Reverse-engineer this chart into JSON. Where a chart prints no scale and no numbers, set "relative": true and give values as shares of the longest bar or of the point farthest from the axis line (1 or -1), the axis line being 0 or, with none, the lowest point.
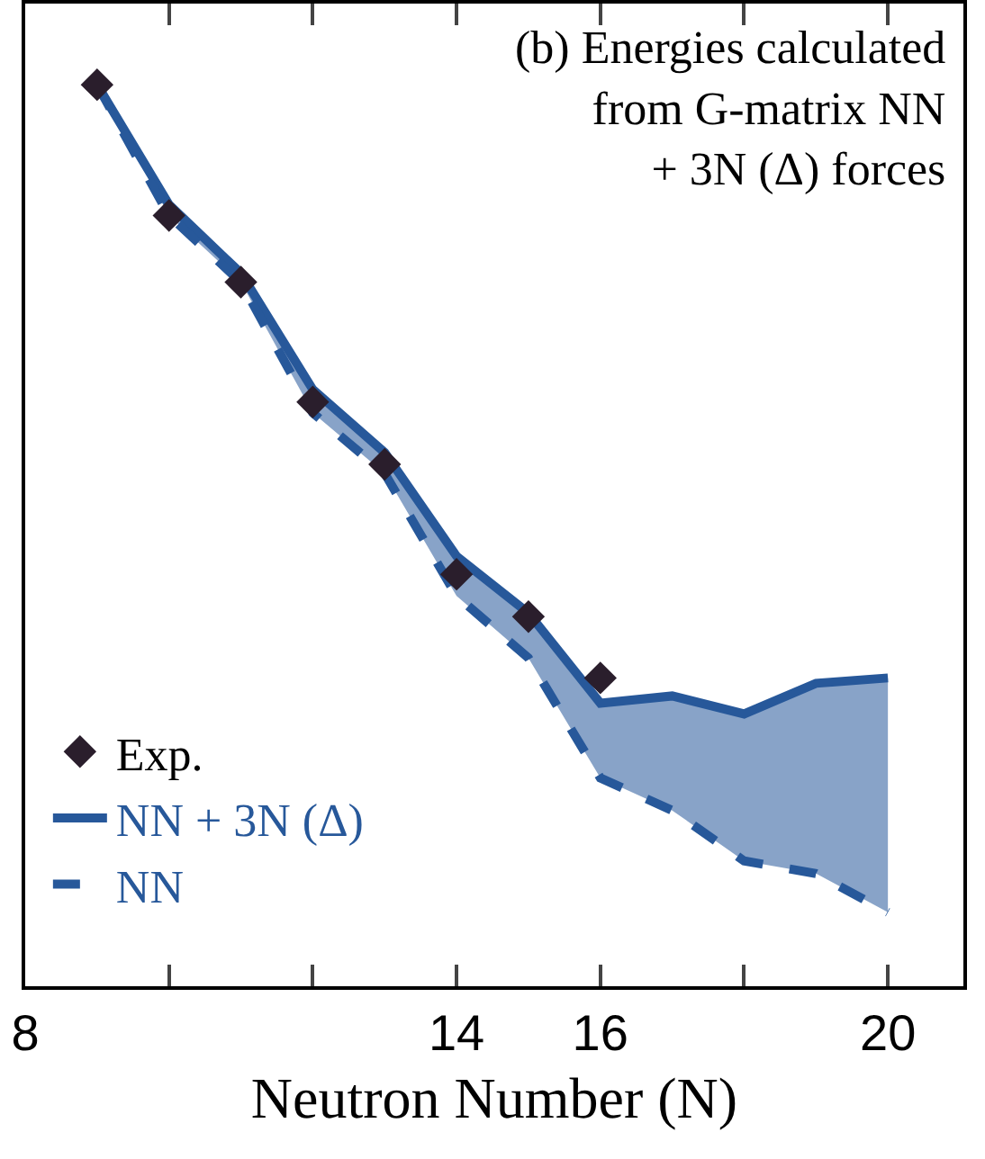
{
  "chart_data": {
    "type": "line",
    "relative": true,
    "xlabel": "Neutron Number (N)",
    "annotations": [
      "(b) Energies calculated\nfrom G-matrix NN\n+ 3N (Δ) forces"
    ],
    "xlim": [
      8,
      21.05
    ],
    "xticks": [
      8,
      {
        "value": 10,
        "label": null
      },
      {
        "value": 12,
        "label": null
      },
      14,
      16,
      {
        "value": 18,
        "label": null
      },
      20
    ],
    "legend": "bottom left",
    "grid": false,
    "series": [
      {
        "name": "NN + 3N (Δ)",
        "type": "line",
        "line_style": "solid",
        "color": "#27589a",
        "x": [
          9,
          10,
          11,
          12,
          13,
          14,
          15,
          16,
          17,
          18,
          19,
          20
        ],
        "values": [
          1.0,
          0.867,
          0.791,
          0.662,
          0.592,
          0.477,
          0.414,
          0.314,
          0.322,
          0.302,
          0.336,
          0.342
        ],
        "lower": [
          1.0,
          0.855,
          0.781,
          0.636,
          0.569,
          0.433,
          0.364,
          0.231,
          0.195,
          0.139,
          0.125,
          0.082
        ],
        "upper": [
          1.0,
          0.867,
          0.791,
          0.662,
          0.592,
          0.477,
          0.414,
          0.314,
          0.322,
          0.302,
          0.336,
          0.342
        ]
      },
      {
        "name": "NN",
        "line_style": "dashed",
        "color": "#27589a",
        "x": [
          9,
          10,
          11,
          12,
          13,
          14,
          15,
          16,
          17,
          18,
          19,
          20
        ],
        "values": [
          1.0,
          0.855,
          0.781,
          0.636,
          0.569,
          0.433,
          0.364,
          0.231,
          0.195,
          0.139,
          0.125,
          0.082
        ]
      },
      {
        "name": "Exp.",
        "type": "scatter",
        "marker": "diamond",
        "color": "#2a1e2c",
        "x": [
          9,
          10,
          11,
          12,
          13,
          14,
          15,
          16
        ],
        "values": [
          1.0,
          0.855,
          0.781,
          0.648,
          0.579,
          0.457,
          0.41,
          0.342
        ]
      }
    ]
  }
}
